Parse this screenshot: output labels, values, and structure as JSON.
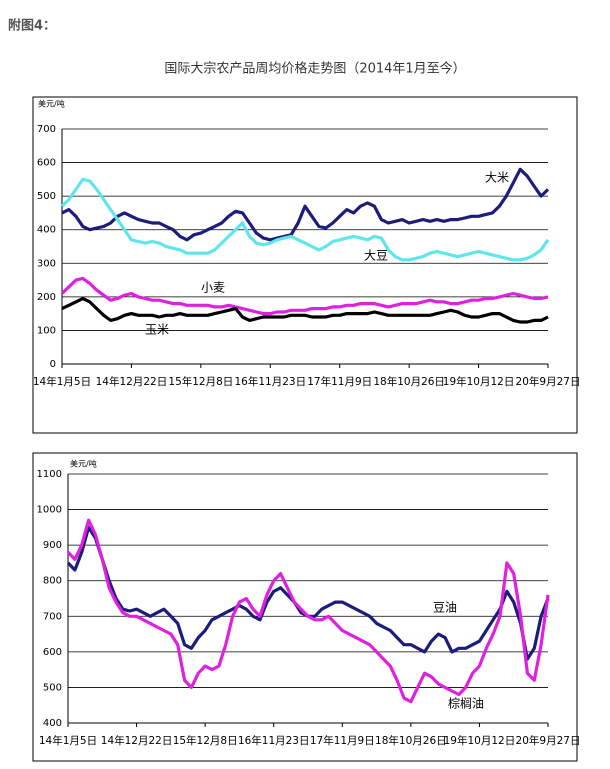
{
  "caption": "附图4：",
  "chart_data": [
    {
      "type": "line",
      "title": "国际大宗农产品周均价格走势图（2014年1月至今）",
      "y_label": "美元/吨",
      "categories": [
        "14年1月5日",
        null,
        null,
        null,
        null,
        null,
        null,
        null,
        null,
        null,
        "14年12月22日",
        null,
        null,
        null,
        null,
        null,
        null,
        null,
        null,
        null,
        "15年12月8日",
        null,
        null,
        null,
        null,
        null,
        null,
        null,
        null,
        null,
        "16年11月23日",
        null,
        null,
        null,
        null,
        null,
        null,
        null,
        null,
        null,
        "17年11月9日",
        null,
        null,
        null,
        null,
        null,
        null,
        null,
        null,
        null,
        "18年10月26日",
        null,
        null,
        null,
        null,
        null,
        null,
        null,
        null,
        null,
        "19年10月12日",
        null,
        null,
        null,
        null,
        null,
        null,
        null,
        null,
        null,
        "20年9月27日"
      ],
      "series": [
        {
          "name": "大米",
          "color": "#1c1c7c",
          "values": [
            450,
            460,
            440,
            410,
            400,
            405,
            410,
            420,
            440,
            450,
            440,
            430,
            425,
            420,
            420,
            410,
            400,
            380,
            370,
            385,
            390,
            400,
            410,
            420,
            440,
            455,
            450,
            420,
            390,
            375,
            370,
            375,
            380,
            385,
            420,
            470,
            440,
            410,
            405,
            420,
            440,
            460,
            450,
            470,
            480,
            470,
            430,
            420,
            425,
            430,
            420,
            425,
            430,
            425,
            430,
            425,
            430,
            430,
            435,
            440,
            440,
            445,
            450,
            470,
            500,
            540,
            580,
            560,
            530,
            500,
            520
          ]
        },
        {
          "name": "大豆",
          "color": "#5ee6ea",
          "values": [
            470,
            490,
            520,
            550,
            545,
            520,
            490,
            460,
            430,
            400,
            370,
            365,
            360,
            365,
            360,
            350,
            345,
            340,
            330,
            330,
            330,
            330,
            340,
            360,
            380,
            400,
            420,
            380,
            360,
            355,
            360,
            370,
            375,
            380,
            370,
            360,
            350,
            340,
            350,
            365,
            370,
            375,
            380,
            375,
            370,
            380,
            375,
            340,
            320,
            310,
            310,
            315,
            320,
            330,
            335,
            330,
            325,
            320,
            325,
            330,
            335,
            330,
            325,
            320,
            315,
            310,
            310,
            315,
            325,
            340,
            370
          ]
        },
        {
          "name": "小麦",
          "color": "#e020e0",
          "values": [
            210,
            230,
            250,
            255,
            240,
            220,
            205,
            190,
            195,
            205,
            210,
            200,
            195,
            190,
            190,
            185,
            180,
            180,
            175,
            175,
            175,
            175,
            170,
            170,
            175,
            170,
            165,
            160,
            155,
            150,
            150,
            155,
            155,
            160,
            160,
            160,
            165,
            165,
            165,
            170,
            170,
            175,
            175,
            180,
            180,
            180,
            175,
            170,
            175,
            180,
            180,
            180,
            185,
            190,
            185,
            185,
            180,
            180,
            185,
            190,
            190,
            195,
            195,
            200,
            205,
            210,
            205,
            200,
            195,
            195,
            200
          ]
        },
        {
          "name": "玉米",
          "color": "#000000",
          "values": [
            165,
            175,
            185,
            195,
            185,
            165,
            145,
            130,
            135,
            145,
            150,
            145,
            145,
            145,
            140,
            145,
            145,
            150,
            145,
            145,
            145,
            145,
            150,
            155,
            160,
            165,
            140,
            130,
            135,
            140,
            140,
            140,
            140,
            145,
            145,
            145,
            140,
            140,
            140,
            145,
            145,
            150,
            150,
            150,
            150,
            155,
            150,
            145,
            145,
            145,
            145,
            145,
            145,
            145,
            150,
            155,
            160,
            155,
            145,
            140,
            140,
            145,
            150,
            150,
            140,
            130,
            125,
            125,
            130,
            130,
            140
          ]
        }
      ],
      "ylim": [
        0,
        700
      ],
      "yticks": [
        0,
        100,
        200,
        300,
        400,
        500,
        600,
        700
      ],
      "grid": true
    },
    {
      "type": "line",
      "y_label": "美元/吨",
      "categories": [
        "14年1月5日",
        null,
        null,
        null,
        null,
        null,
        null,
        null,
        null,
        null,
        "14年12月22日",
        null,
        null,
        null,
        null,
        null,
        null,
        null,
        null,
        null,
        "15年12月8日",
        null,
        null,
        null,
        null,
        null,
        null,
        null,
        null,
        null,
        "16年11月23日",
        null,
        null,
        null,
        null,
        null,
        null,
        null,
        null,
        null,
        "17年11月9日",
        null,
        null,
        null,
        null,
        null,
        null,
        null,
        null,
        null,
        "18年10月26日",
        null,
        null,
        null,
        null,
        null,
        null,
        null,
        null,
        null,
        "19年10月12日",
        null,
        null,
        null,
        null,
        null,
        null,
        null,
        null,
        null,
        "20年9月27日"
      ],
      "series": [
        {
          "name": "豆油",
          "color": "#1c1c7c",
          "values": [
            850,
            830,
            880,
            950,
            920,
            860,
            800,
            750,
            720,
            715,
            720,
            710,
            700,
            710,
            720,
            700,
            680,
            620,
            610,
            640,
            660,
            690,
            700,
            710,
            720,
            730,
            720,
            700,
            690,
            740,
            770,
            780,
            760,
            740,
            710,
            700,
            700,
            720,
            730,
            740,
            740,
            730,
            720,
            710,
            700,
            680,
            670,
            660,
            640,
            620,
            620,
            610,
            600,
            630,
            650,
            640,
            600,
            610,
            610,
            620,
            630,
            660,
            690,
            720,
            770,
            740,
            680,
            580,
            610,
            700,
            750
          ]
        },
        {
          "name": "棕榈油",
          "color": "#e020e0",
          "values": [
            880,
            860,
            900,
            970,
            930,
            860,
            780,
            740,
            710,
            700,
            700,
            690,
            680,
            670,
            660,
            650,
            620,
            520,
            500,
            540,
            560,
            550,
            560,
            620,
            700,
            740,
            750,
            720,
            700,
            760,
            800,
            820,
            780,
            740,
            720,
            700,
            690,
            690,
            700,
            680,
            660,
            650,
            640,
            630,
            620,
            600,
            580,
            560,
            520,
            470,
            460,
            500,
            540,
            530,
            510,
            500,
            490,
            480,
            500,
            540,
            560,
            610,
            650,
            700,
            850,
            820,
            700,
            540,
            520,
            620,
            760
          ]
        }
      ],
      "ylim": [
        400,
        1100
      ],
      "yticks": [
        400,
        500,
        600,
        700,
        800,
        900,
        1000,
        1100
      ],
      "grid": true
    }
  ]
}
